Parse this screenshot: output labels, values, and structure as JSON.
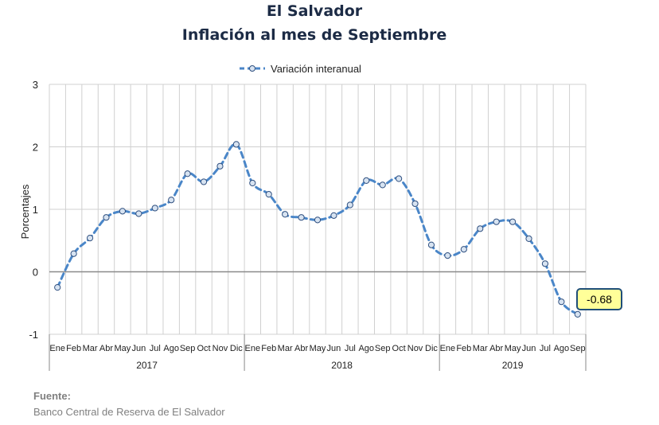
{
  "chart_data": {
    "type": "line",
    "title": "El Salvador",
    "subtitle": "Inflación al mes de Septiembre",
    "ylabel": "Porcentajes",
    "xlabel": "",
    "ylim": [
      -1,
      3
    ],
    "yticks": [
      "-1",
      "0",
      "1",
      "2",
      "3"
    ],
    "grid": true,
    "legend_position": "top-center",
    "series": [
      {
        "name": "Variación interanual",
        "color": "#4a86c8",
        "values": [
          -0.25,
          0.29,
          0.54,
          0.87,
          0.97,
          0.93,
          1.02,
          1.15,
          1.57,
          1.44,
          1.69,
          2.04,
          1.42,
          1.24,
          0.92,
          0.87,
          0.83,
          0.9,
          1.07,
          1.46,
          1.39,
          1.49,
          1.09,
          0.43,
          0.26,
          0.36,
          0.69,
          0.8,
          0.8,
          0.53,
          0.13,
          -0.48,
          -0.68
        ]
      }
    ],
    "month_labels": [
      "Ene",
      "Feb",
      "Mar",
      "Abr",
      "May",
      "Jun",
      "Jul",
      "Ago",
      "Sep",
      "Oct",
      "Nov",
      "Dic",
      "Ene",
      "Feb",
      "Mar",
      "Abr",
      "May",
      "Jun",
      "Jul",
      "Ago",
      "Sep",
      "Oct",
      "Nov",
      "Dic",
      "Ene",
      "Feb",
      "Mar",
      "Abr",
      "May",
      "Jun",
      "Jul",
      "Ago",
      "Sep"
    ],
    "year_labels": [
      "2017",
      "2018",
      "2019"
    ],
    "data_labels": [
      "-0.68"
    ]
  },
  "source": {
    "label": "Fuente:",
    "text": "Banco Central de Reserva de El Salvador"
  }
}
